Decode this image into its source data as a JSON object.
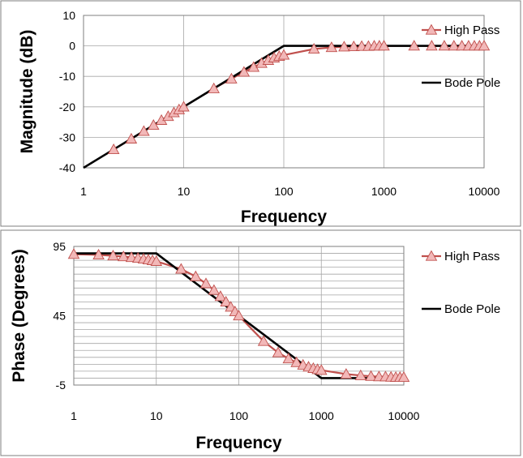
{
  "colors": {
    "high_pass_line": "#c0504d",
    "high_pass_marker_fill": "#f2b8b8",
    "bode_pole_line": "#000000"
  },
  "chart_data": [
    {
      "type": "line",
      "x_scale": "log",
      "xlabel": "Frequency",
      "ylabel": "Magnitude (dB)",
      "xlim": [
        1,
        10000
      ],
      "ylim": [
        -40,
        10
      ],
      "x_ticks": [
        1,
        10,
        100,
        1000,
        10000
      ],
      "x_tick_labels": [
        "1",
        "10",
        "100",
        "1000",
        "10000"
      ],
      "y_ticks": [
        -40,
        -30,
        -20,
        -10,
        0,
        10
      ],
      "y_tick_labels": [
        "-40",
        "-30",
        "-20",
        "-10",
        "0",
        "10"
      ],
      "grid": true,
      "legend_position": "right",
      "series": [
        {
          "name": "High Pass",
          "marker": "triangle",
          "x": [
            2,
            3,
            4,
            5,
            6,
            7,
            8,
            9,
            10,
            20,
            30,
            40,
            50,
            60,
            70,
            80,
            90,
            100,
            200,
            300,
            400,
            500,
            600,
            700,
            800,
            900,
            1000,
            2000,
            3000,
            4000,
            5000,
            6000,
            7000,
            8000,
            9000,
            10000
          ],
          "y": [
            -34,
            -30.5,
            -28,
            -26,
            -24.4,
            -23.1,
            -21.9,
            -20.9,
            -20,
            -14,
            -10.8,
            -8.6,
            -7,
            -5.7,
            -4.7,
            -3.9,
            -3.4,
            -3,
            -1,
            -0.5,
            -0.3,
            -0.2,
            -0.1,
            -0.1,
            0,
            0,
            0,
            0,
            0,
            0,
            0,
            0,
            0,
            0,
            0,
            0
          ]
        },
        {
          "name": "Bode Pole",
          "x": [
            1,
            100,
            10000
          ],
          "y": [
            -40,
            0,
            0
          ]
        }
      ]
    },
    {
      "type": "line",
      "x_scale": "log",
      "xlabel": "Frequency",
      "ylabel": "Phase (Degrees)",
      "xlim": [
        1,
        10000
      ],
      "ylim": [
        -5,
        95
      ],
      "x_ticks": [
        1,
        10,
        100,
        1000,
        10000
      ],
      "x_tick_labels": [
        "1",
        "10",
        "100",
        "1000",
        "10000"
      ],
      "y_ticks": [
        -5,
        45,
        95
      ],
      "y_tick_labels": [
        "-5",
        "45",
        "95"
      ],
      "y_grid_step": 5,
      "grid": true,
      "legend_position": "right",
      "series": [
        {
          "name": "High Pass",
          "marker": "triangle",
          "x": [
            1,
            2,
            3,
            4,
            5,
            6,
            7,
            8,
            9,
            10,
            20,
            30,
            40,
            50,
            60,
            70,
            80,
            90,
            100,
            200,
            300,
            400,
            500,
            600,
            700,
            800,
            900,
            1000,
            2000,
            3000,
            4000,
            5000,
            6000,
            7000,
            8000,
            9000,
            10000
          ],
          "y": [
            89.4,
            88.9,
            88.3,
            87.7,
            87.1,
            86.6,
            86,
            85.4,
            84.9,
            84.3,
            78.7,
            73.3,
            68.2,
            63.4,
            59,
            55,
            51.3,
            48,
            45,
            26.6,
            18.4,
            14,
            11.3,
            9.5,
            8.1,
            7.1,
            6.3,
            5.7,
            2.9,
            1.9,
            1.4,
            1.1,
            1,
            0.8,
            0.7,
            0.6,
            0.6
          ]
        },
        {
          "name": "Bode Pole",
          "x": [
            1,
            10,
            1000,
            10000
          ],
          "y": [
            90,
            90,
            0,
            0
          ]
        }
      ]
    }
  ]
}
